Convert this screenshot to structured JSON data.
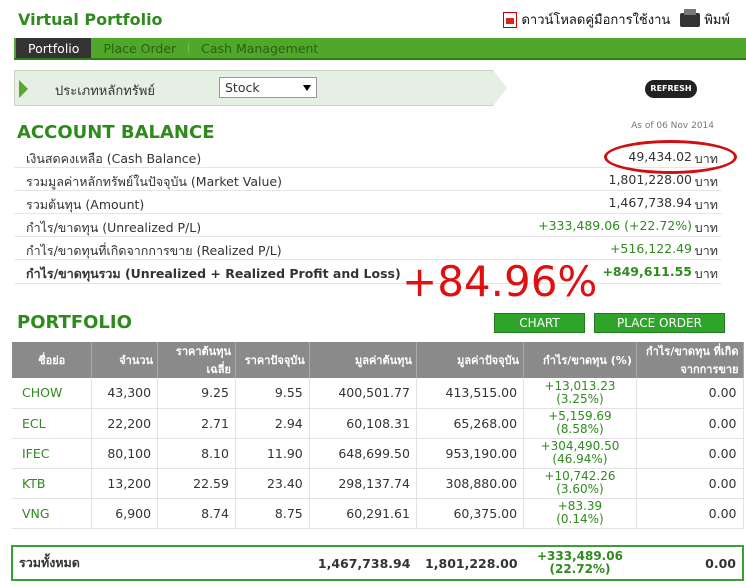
{
  "header": {
    "title": "Virtual Portfolio",
    "download_label": "ดาวน์โหลดคู่มือการใช้งาน",
    "print_label": "พิมพ์"
  },
  "tabs": [
    {
      "label": "Portfolio"
    },
    {
      "label": "Place Order"
    },
    {
      "label": "Cash Management"
    }
  ],
  "filter": {
    "label": "ประเภทหลักทรัพย์",
    "selected": "Stock",
    "refresh_label": "REFRESH"
  },
  "account": {
    "title": "ACCOUNT BALANCE",
    "as_of": "As of 06 Nov 2014",
    "unit": "บาท",
    "rows": [
      {
        "label": "เงินสดคงเหลือ (Cash Balance)",
        "value": "49,434.02"
      },
      {
        "label": "รวมมูลค่าหลักทรัพย์ในปัจจุบัน (Market Value)",
        "value": "1,801,228.00"
      },
      {
        "label": "รวมต้นทุน (Amount)",
        "value": "1,467,738.94"
      },
      {
        "label": "กำไร/ขาดทุน (Unrealized P/L)",
        "value": "+333,489.06 (+22.72%)"
      },
      {
        "label": "กำไร/ขาดทุนที่เกิดจากการขาย (Realized P/L)",
        "value": "+516,122.49"
      },
      {
        "label": "กำไร/ขาดทุนรวม (Unrealized + Realized Profit and Loss)",
        "value": "+849,611.55"
      }
    ],
    "annotation": "+84.96%"
  },
  "portfolio": {
    "title": "PORTFOLIO",
    "chart_label": "CHART",
    "order_label": "PLACE ORDER",
    "headers": [
      "ชื่อย่อ",
      "จำนวน",
      "ราคาต้นทุนเฉลี่ย",
      "ราคาปัจจุบัน",
      "มูลค่าต้นทุน",
      "มูลค่าปัจจุบัน",
      "กำไร/ขาดทุน (%)",
      "กำไร/ขาดทุน ที่เกิดจากการขาย"
    ],
    "rows": [
      {
        "symbol": "CHOW",
        "qty": "43,300",
        "avg": "9.25",
        "price": "9.55",
        "cost": "400,501.77",
        "market": "413,515.00",
        "pl": "+13,013.23",
        "pct": "(3.25%)",
        "realized": "0.00"
      },
      {
        "symbol": "ECL",
        "qty": "22,200",
        "avg": "2.71",
        "price": "2.94",
        "cost": "60,108.31",
        "market": "65,268.00",
        "pl": "+5,159.69",
        "pct": "(8.58%)",
        "realized": "0.00"
      },
      {
        "symbol": "IFEC",
        "qty": "80,100",
        "avg": "8.10",
        "price": "11.90",
        "cost": "648,699.50",
        "market": "953,190.00",
        "pl": "+304,490.50",
        "pct": "(46.94%)",
        "realized": "0.00"
      },
      {
        "symbol": "KTB",
        "qty": "13,200",
        "avg": "22.59",
        "price": "23.40",
        "cost": "298,137.74",
        "market": "308,880.00",
        "pl": "+10,742.26",
        "pct": "(3.60%)",
        "realized": "0.00"
      },
      {
        "symbol": "VNG",
        "qty": "6,900",
        "avg": "8.74",
        "price": "8.75",
        "cost": "60,291.61",
        "market": "60,375.00",
        "pl": "+83.39",
        "pct": "(0.14%)",
        "realized": "0.00"
      }
    ],
    "total": {
      "label": "รวมทั้งหมด",
      "cost": "1,467,738.94",
      "market": "1,801,228.00",
      "pl": "+333,489.06",
      "pct": "(22.72%)",
      "realized": "0.00"
    }
  }
}
